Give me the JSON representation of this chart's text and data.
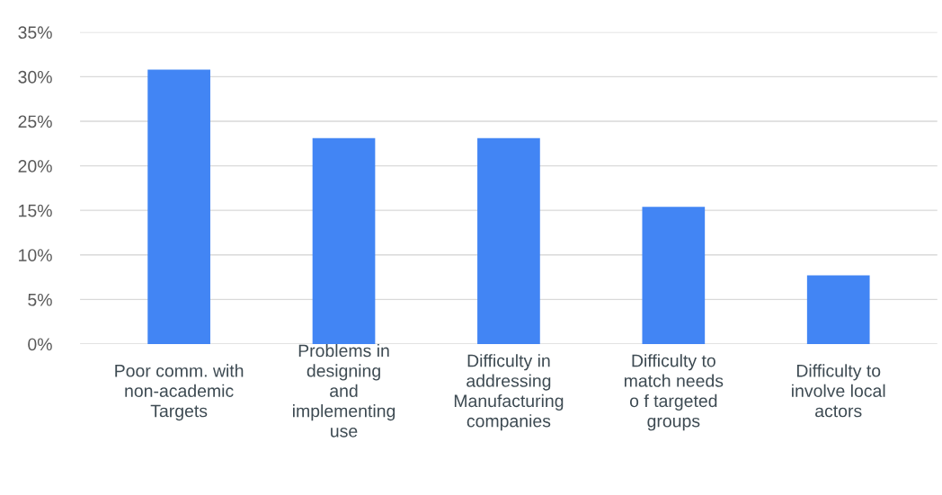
{
  "chart_data": {
    "type": "bar",
    "categories": [
      "Poor comm. with\nnon-academic\nTargets",
      "Problems in\ndesigning\nand\nimplementing\nuse",
      "Difficulty in\naddressing\nManufacturing\ncompanies",
      "Difficulty to\nmatch needs\no f targeted\ngroups",
      "Difficulty to\ninvolve local\nactors"
    ],
    "values": [
      30.8,
      23.1,
      23.1,
      15.4,
      7.7
    ],
    "color": "#4285f4",
    "ylim": [
      0,
      35
    ],
    "yticks": [
      {
        "value": 0,
        "label": "0%"
      },
      {
        "value": 5,
        "label": "5%"
      },
      {
        "value": 10,
        "label": "10%"
      },
      {
        "value": 15,
        "label": "15%"
      },
      {
        "value": 20,
        "label": "20%"
      },
      {
        "value": 25,
        "label": "25%"
      },
      {
        "value": 30,
        "label": "30%"
      },
      {
        "value": 35,
        "label": "35%"
      }
    ],
    "grid": "y",
    "legend": false
  }
}
